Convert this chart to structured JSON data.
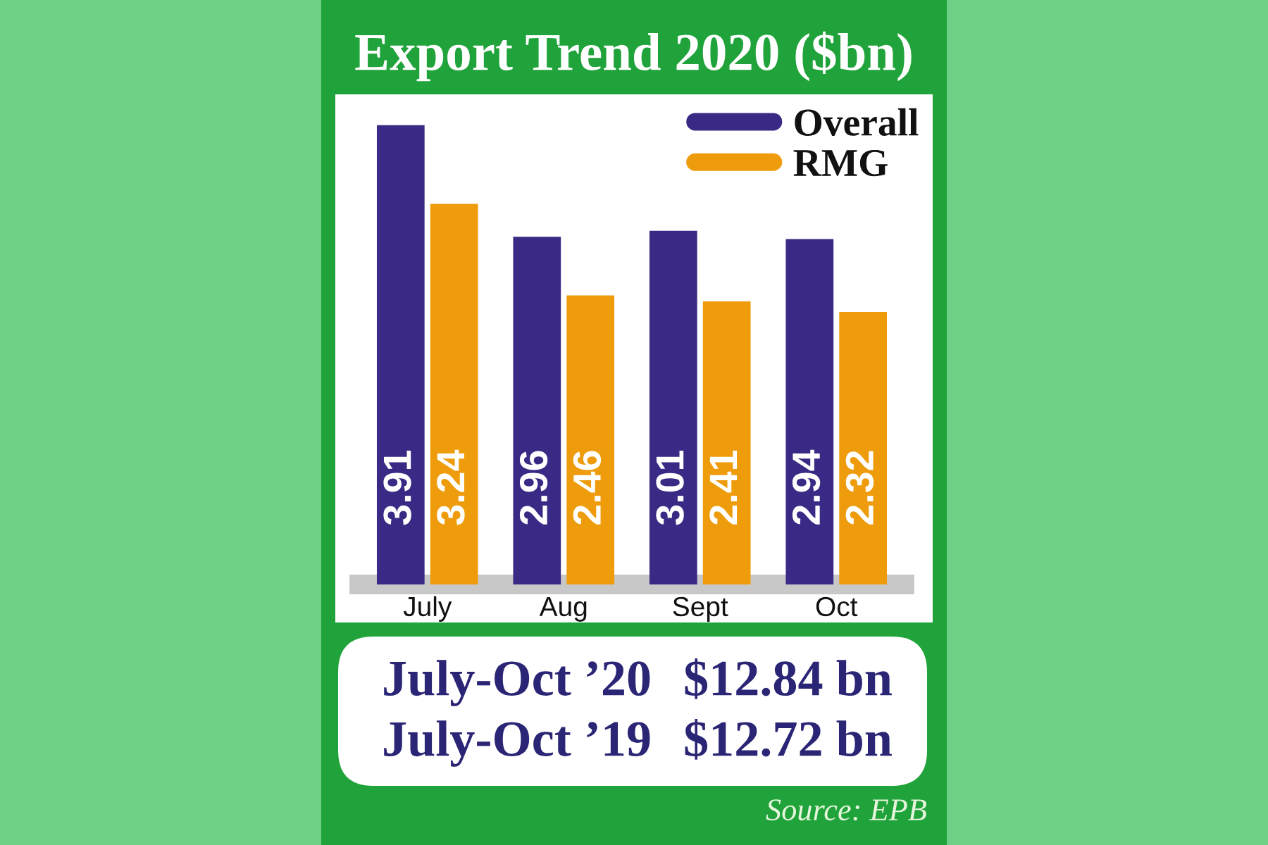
{
  "chart_data": {
    "type": "bar",
    "title": "Export Trend 2020 ($bn)",
    "categories": [
      "July",
      "Aug",
      "Sept",
      "Oct"
    ],
    "series": [
      {
        "name": "Overall",
        "color": "#3a2a85",
        "values": [
          3.91,
          2.96,
          3.01,
          2.94
        ]
      },
      {
        "name": "RMG",
        "color": "#ee9c0c",
        "values": [
          3.24,
          2.46,
          2.41,
          2.32
        ]
      }
    ],
    "data_labels": true,
    "legend": "top right",
    "tick_labels": "x",
    "annotations": [
      "July-Oct ’20",
      "$12.84 bn",
      "July-Oct ’19",
      "$12.72 bn",
      "Source: EPB"
    ]
  }
}
